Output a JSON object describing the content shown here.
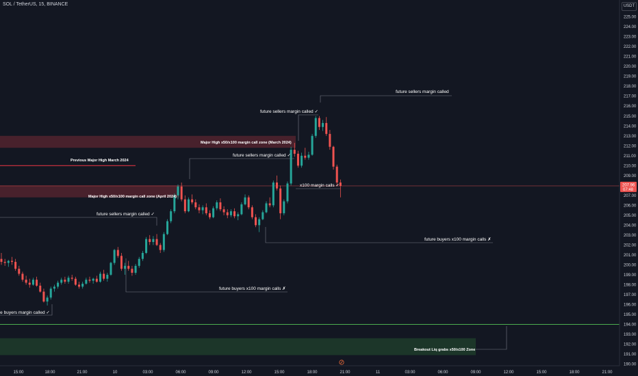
{
  "header": {
    "symbol": "SOL / TetherUS, 15, BINANCE",
    "currency": "USDT"
  },
  "colors": {
    "background": "#131722",
    "up": "#26a69a",
    "down": "#ef5350",
    "zone": "#5b2530",
    "green_zone": "#1e3a2a",
    "green_line": "#4caf50",
    "red_line": "#f23645"
  },
  "chart_data": {
    "type": "candlestick",
    "y_axis": {
      "min": 190,
      "max": 225,
      "ticks": [
        190,
        191,
        192,
        193,
        194,
        195,
        196,
        197,
        198,
        199,
        200,
        201,
        202,
        203,
        204,
        205,
        206,
        207,
        208,
        209,
        210,
        211,
        212,
        213,
        214,
        215,
        216,
        217,
        218,
        219,
        220,
        221,
        222,
        223,
        224,
        225
      ],
      "position": "right"
    },
    "x_axis": {
      "ticks": [
        "15:00",
        "18:00",
        "21:00",
        "10",
        "03:00",
        "06:00",
        "09:00",
        "12:00",
        "15:00",
        "18:00",
        "21:00",
        "11",
        "03:00",
        "06:00",
        "09:00",
        "12:00",
        "15:00",
        "18:00",
        "21:00"
      ]
    },
    "last_price": {
      "label": "207.96",
      "sub": "07:48",
      "value": 207.96
    },
    "candles": [
      [
        200.6,
        201.2,
        200.0,
        200.3
      ],
      [
        200.3,
        200.6,
        199.9,
        200.2
      ],
      [
        200.2,
        200.5,
        199.8,
        200.4
      ],
      [
        200.4,
        200.8,
        200.0,
        200.3
      ],
      [
        200.3,
        200.6,
        199.4,
        199.6
      ],
      [
        199.6,
        199.9,
        198.9,
        199.1
      ],
      [
        199.1,
        199.3,
        198.3,
        198.5
      ],
      [
        198.5,
        198.9,
        198.0,
        198.2
      ],
      [
        198.2,
        198.6,
        197.7,
        198.0
      ],
      [
        198.0,
        198.7,
        197.9,
        198.5
      ],
      [
        198.5,
        198.8,
        197.8,
        197.9
      ],
      [
        197.9,
        198.2,
        197.2,
        197.3
      ],
      [
        197.3,
        197.6,
        196.2,
        196.3
      ],
      [
        196.3,
        196.9,
        195.9,
        196.7
      ],
      [
        196.7,
        197.8,
        196.5,
        197.6
      ],
      [
        197.6,
        198.0,
        197.3,
        197.8
      ],
      [
        197.8,
        198.4,
        197.6,
        198.2
      ],
      [
        198.2,
        198.7,
        198.0,
        198.5
      ],
      [
        198.5,
        198.8,
        198.1,
        198.3
      ],
      [
        198.3,
        198.9,
        198.1,
        198.7
      ],
      [
        198.7,
        199.0,
        198.4,
        198.6
      ],
      [
        198.6,
        198.8,
        197.9,
        198.0
      ],
      [
        198.0,
        198.3,
        197.6,
        197.8
      ],
      [
        197.8,
        198.3,
        197.6,
        198.1
      ],
      [
        198.1,
        198.7,
        198.0,
        198.5
      ],
      [
        198.5,
        198.8,
        198.2,
        198.4
      ],
      [
        198.4,
        198.7,
        198.1,
        198.6
      ],
      [
        198.6,
        198.9,
        198.2,
        198.3
      ],
      [
        198.3,
        199.3,
        198.2,
        199.1
      ],
      [
        199.1,
        199.5,
        198.4,
        198.6
      ],
      [
        198.6,
        199.2,
        198.3,
        199.0
      ],
      [
        199.0,
        200.3,
        198.9,
        200.2
      ],
      [
        200.2,
        201.6,
        200.0,
        201.5
      ],
      [
        201.5,
        201.8,
        200.7,
        200.9
      ],
      [
        200.9,
        201.2,
        199.4,
        199.6
      ],
      [
        199.6,
        200.2,
        199.0,
        199.9
      ],
      [
        199.9,
        200.4,
        199.4,
        199.6
      ],
      [
        199.6,
        199.9,
        198.9,
        199.2
      ],
      [
        199.2,
        200.1,
        199.0,
        199.9
      ],
      [
        199.9,
        200.8,
        199.7,
        200.6
      ],
      [
        200.6,
        201.4,
        200.4,
        201.2
      ],
      [
        201.2,
        202.8,
        201.1,
        202.6
      ],
      [
        202.6,
        203.0,
        202.0,
        202.3
      ],
      [
        202.3,
        202.9,
        202.0,
        202.6
      ],
      [
        202.6,
        203.1,
        201.9,
        202.0
      ],
      [
        202.0,
        202.2,
        201.2,
        201.5
      ],
      [
        201.5,
        203.3,
        201.3,
        203.1
      ],
      [
        203.1,
        204.6,
        203.0,
        204.4
      ],
      [
        204.4,
        205.6,
        204.2,
        205.4
      ],
      [
        205.4,
        207.2,
        205.2,
        207.0
      ],
      [
        207.0,
        208.1,
        206.6,
        207.9
      ],
      [
        207.9,
        208.3,
        206.4,
        206.6
      ],
      [
        206.6,
        207.0,
        205.2,
        205.4
      ],
      [
        205.4,
        206.8,
        205.3,
        206.6
      ],
      [
        206.6,
        207.1,
        206.1,
        206.3
      ],
      [
        206.3,
        206.6,
        205.6,
        205.8
      ],
      [
        205.8,
        206.1,
        205.2,
        205.5
      ],
      [
        205.5,
        206.0,
        205.1,
        205.8
      ],
      [
        205.8,
        206.2,
        205.0,
        205.2
      ],
      [
        205.2,
        205.5,
        204.6,
        204.8
      ],
      [
        204.8,
        205.9,
        204.7,
        205.7
      ],
      [
        205.7,
        206.5,
        205.5,
        206.3
      ],
      [
        206.3,
        206.7,
        205.4,
        205.6
      ],
      [
        205.6,
        205.9,
        205.0,
        205.3
      ],
      [
        205.3,
        205.6,
        204.7,
        205.0
      ],
      [
        205.0,
        205.6,
        204.8,
        205.4
      ],
      [
        205.4,
        205.7,
        204.7,
        204.9
      ],
      [
        204.9,
        205.3,
        204.5,
        205.1
      ],
      [
        205.1,
        206.3,
        205.0,
        206.1
      ],
      [
        206.1,
        207.1,
        206.0,
        206.8
      ],
      [
        206.8,
        207.0,
        205.6,
        205.8
      ],
      [
        205.8,
        206.0,
        204.6,
        204.8
      ],
      [
        204.8,
        205.1,
        203.8,
        204.0
      ],
      [
        204.0,
        204.8,
        203.3,
        204.6
      ],
      [
        204.6,
        205.5,
        204.5,
        205.3
      ],
      [
        205.3,
        206.4,
        205.2,
        206.2
      ],
      [
        206.2,
        206.8,
        205.8,
        206.0
      ],
      [
        206.0,
        208.5,
        205.8,
        208.3
      ],
      [
        208.3,
        209.0,
        207.5,
        207.7
      ],
      [
        207.7,
        208.0,
        204.6,
        205.2
      ],
      [
        205.2,
        206.6,
        205.0,
        206.4
      ],
      [
        206.4,
        208.4,
        206.2,
        208.2
      ],
      [
        208.2,
        211.9,
        208.0,
        211.6
      ],
      [
        211.6,
        212.3,
        210.9,
        211.2
      ],
      [
        211.2,
        211.5,
        209.8,
        210.0
      ],
      [
        210.0,
        211.3,
        209.8,
        211.0
      ],
      [
        211.0,
        211.8,
        210.6,
        210.8
      ],
      [
        210.8,
        211.4,
        210.6,
        211.1
      ],
      [
        211.1,
        213.2,
        211.0,
        213.0
      ],
      [
        213.0,
        215.0,
        212.8,
        214.8
      ],
      [
        214.8,
        215.0,
        213.6,
        213.9
      ],
      [
        213.9,
        214.6,
        213.5,
        214.3
      ],
      [
        214.3,
        214.9,
        213.0,
        213.2
      ],
      [
        213.2,
        213.6,
        211.6,
        211.9
      ],
      [
        211.9,
        212.0,
        209.6,
        209.9
      ],
      [
        209.9,
        210.1,
        208.0,
        208.3
      ],
      [
        208.3,
        208.6,
        206.8,
        207.96
      ]
    ]
  },
  "levels": {
    "major_high_march_zone": {
      "label": "Major High x50/x100 margin call zone (March 2024)",
      "top": 213.0,
      "bottom": 211.8
    },
    "previous_high_line": {
      "label": "Previous Major High March 2024",
      "price": 210.0
    },
    "major_high_april_zone": {
      "label": "Major High x50/x100 margin call zone (April 2024)",
      "top": 208.0,
      "bottom": 206.8
    },
    "green_line": {
      "price": 194.0
    },
    "green_zone": {
      "label": "Breakout Liq grabs x50/x100 Zone",
      "top": 192.6,
      "bottom": 190.9
    }
  },
  "annotations": {
    "sellers_top": "future sellers margin called",
    "sellers_215": "future sellers margin called ✓",
    "sellers_211": "future sellers margin called ✓",
    "sellers_205": "future sellers margin called ✓",
    "x100_calls": "x100 margin calls ✓",
    "buyers_202": "future buyers x100 margin calls ✗",
    "buyers_197": "future buyers x100 margin calls ✗",
    "buyers_left": "re buyers margin called ✓"
  }
}
